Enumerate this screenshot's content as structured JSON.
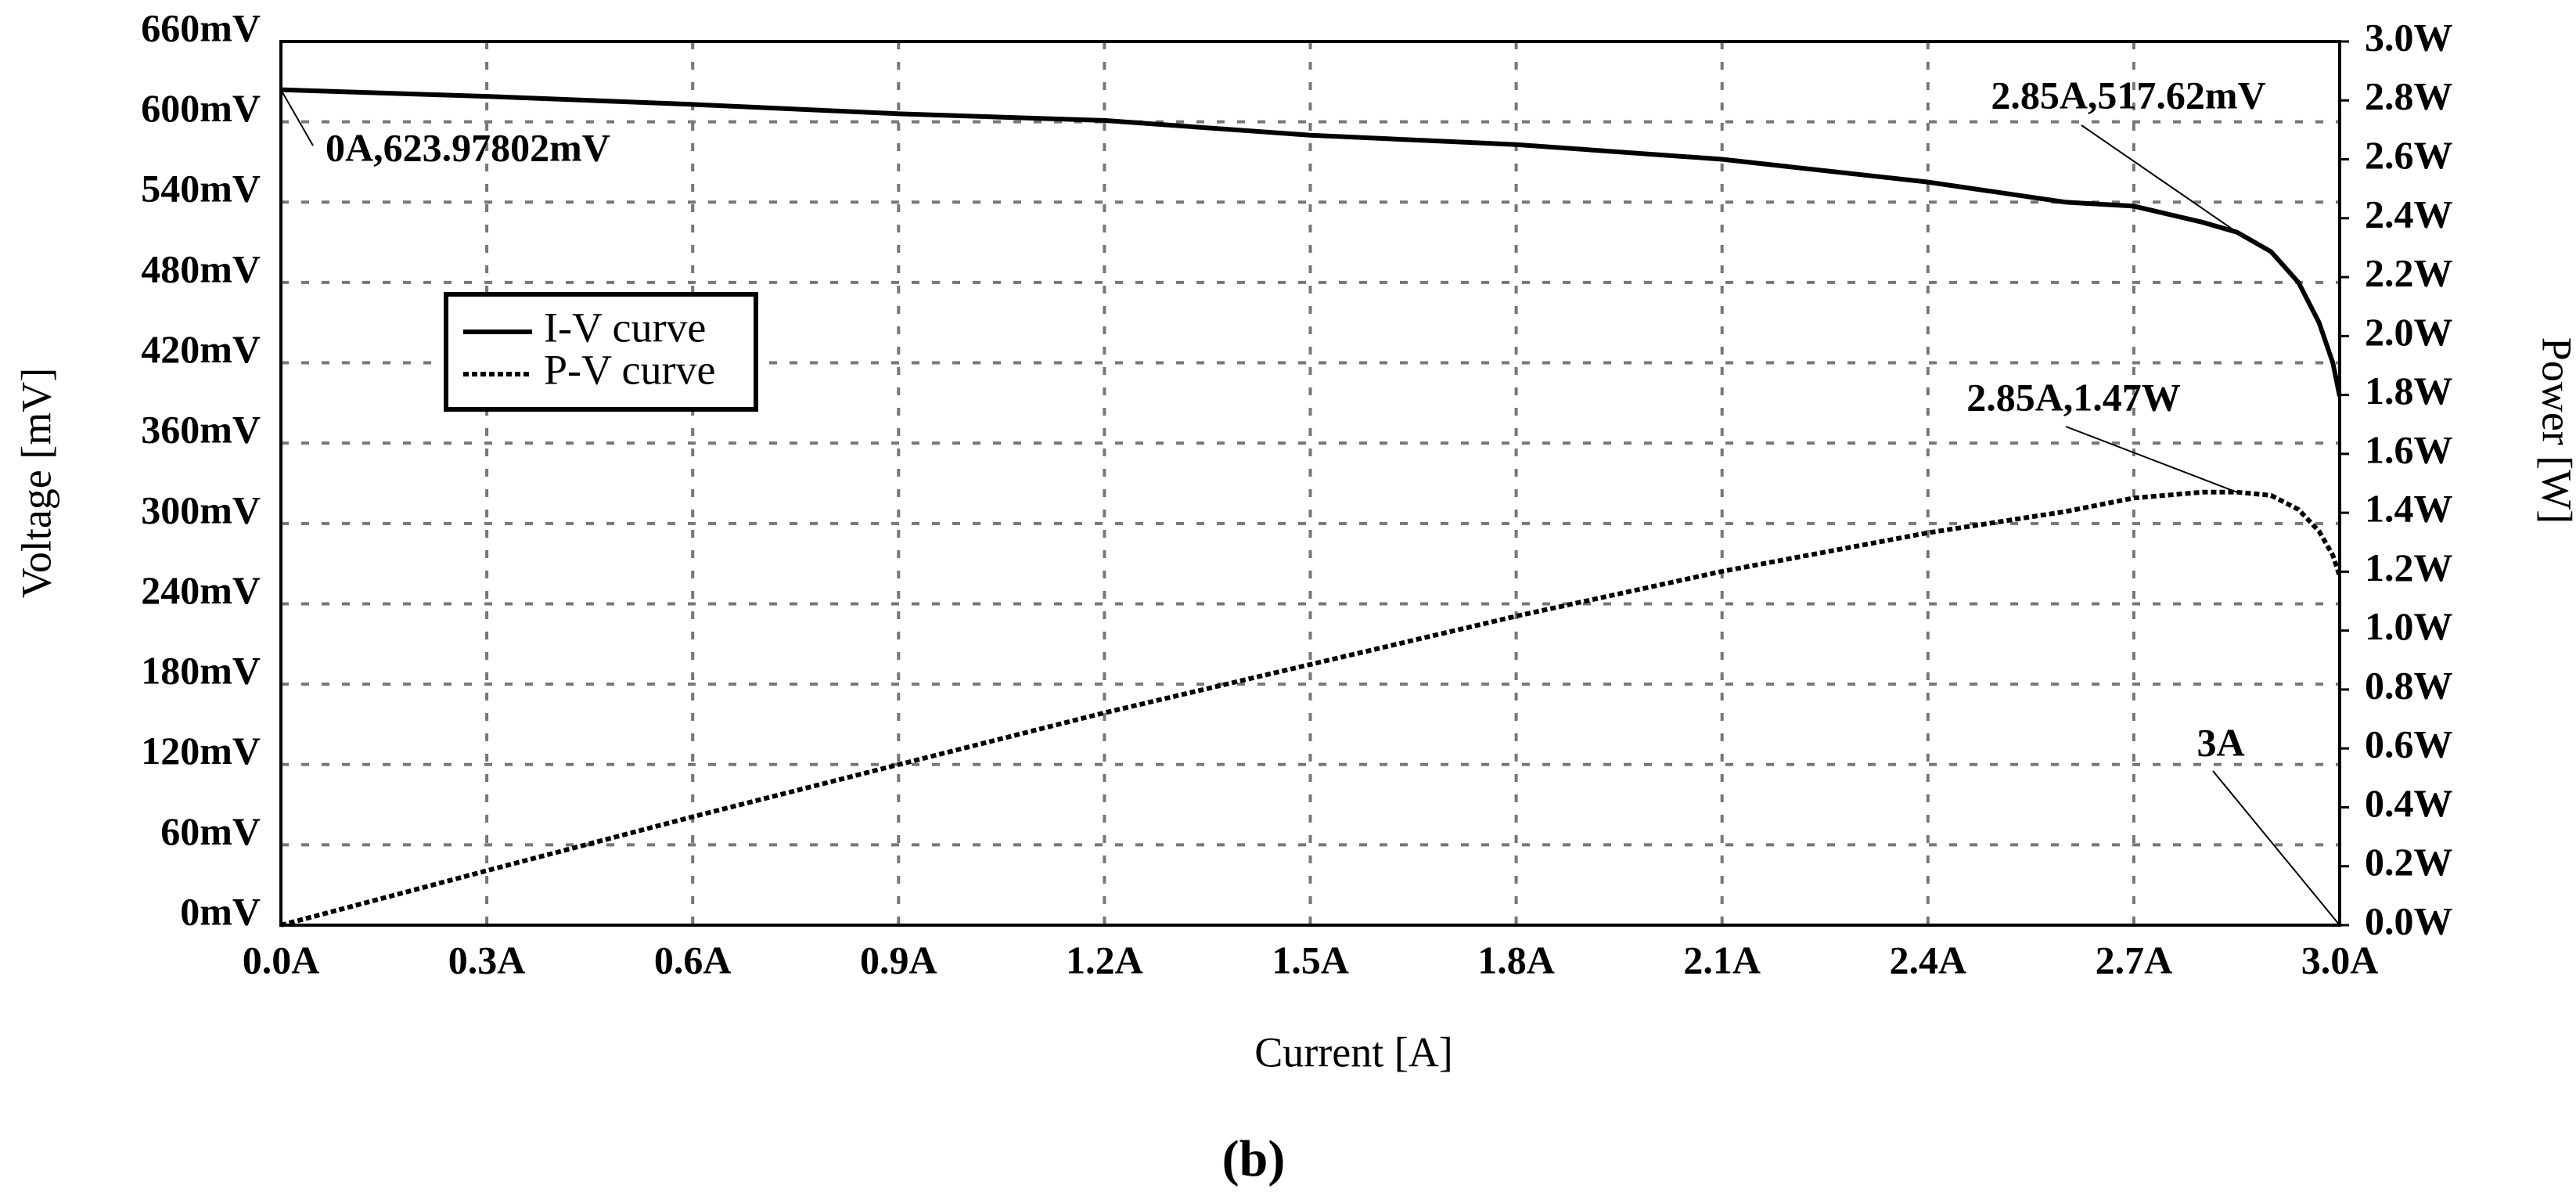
{
  "chart_data": {
    "type": "line",
    "caption": "(b)",
    "xlabel": "Current [A]",
    "ylabel": "Voltage [mV]",
    "y2label": "Power [W]",
    "x": [
      0,
      0.3,
      0.6,
      0.9,
      1.2,
      1.5,
      1.8,
      2.1,
      2.4,
      2.6,
      2.7,
      2.8,
      2.85,
      2.9,
      2.94,
      2.97,
      2.99,
      3.0
    ],
    "series": [
      {
        "name": "I-V curve",
        "color": "#000000",
        "style": "solid",
        "axis": "y",
        "values": [
          623.97802,
          619,
          613,
          606,
          601,
          590,
          583,
          572,
          555,
          540,
          537,
          525,
          517.62,
          503,
          480,
          450,
          420,
          395
        ]
      },
      {
        "name": "P-V curve",
        "color": "#000000",
        "style": "dotted",
        "axis": "y2",
        "values": [
          0,
          0.185,
          0.368,
          0.545,
          0.721,
          0.885,
          1.049,
          1.201,
          1.332,
          1.404,
          1.45,
          1.47,
          1.47,
          1.459,
          1.411,
          1.337,
          1.256,
          1.185
        ]
      }
    ],
    "annotations": [
      "0A,623.97802mV",
      "2.85A,517.62mV",
      "2.85A,1.47W",
      "3A"
    ],
    "xlim": [
      0,
      3.0
    ],
    "xticks": [
      {
        "value": 0,
        "label": "0.0A"
      },
      {
        "value": 0.3,
        "label": "0.3A"
      },
      {
        "value": 0.6,
        "label": "0.6A"
      },
      {
        "value": 0.9,
        "label": "0.9A"
      },
      {
        "value": 1.2,
        "label": "1.2A"
      },
      {
        "value": 1.5,
        "label": "1.5A"
      },
      {
        "value": 1.8,
        "label": "1.8A"
      },
      {
        "value": 2.1,
        "label": "2.1A"
      },
      {
        "value": 2.4,
        "label": "2.4A"
      },
      {
        "value": 2.7,
        "label": "2.7A"
      },
      {
        "value": 3.0,
        "label": "3.0A"
      }
    ],
    "ylim": [
      0,
      660
    ],
    "yticks": [
      {
        "value": 0,
        "label": "0mV"
      },
      {
        "value": 60,
        "label": "60mV"
      },
      {
        "value": 120,
        "label": "120mV"
      },
      {
        "value": 180,
        "label": "180mV"
      },
      {
        "value": 240,
        "label": "240mV"
      },
      {
        "value": 300,
        "label": "300mV"
      },
      {
        "value": 360,
        "label": "360mV"
      },
      {
        "value": 420,
        "label": "420mV"
      },
      {
        "value": 480,
        "label": "480mV"
      },
      {
        "value": 540,
        "label": "540mV"
      },
      {
        "value": 600,
        "label": "600mV"
      },
      {
        "value": 660,
        "label": "660mV"
      }
    ],
    "y2lim": [
      0,
      3.0
    ],
    "y2ticks": [
      {
        "value": 0,
        "label": "0.0W"
      },
      {
        "value": 0.2,
        "label": "0.2W"
      },
      {
        "value": 0.4,
        "label": "0.4W"
      },
      {
        "value": 0.6,
        "label": "0.6W"
      },
      {
        "value": 0.8,
        "label": "0.8W"
      },
      {
        "value": 1.0,
        "label": "1.0W"
      },
      {
        "value": 1.2,
        "label": "1.2W"
      },
      {
        "value": 1.4,
        "label": "1.4W"
      },
      {
        "value": 1.6,
        "label": "1.6W"
      },
      {
        "value": 1.8,
        "label": "1.8W"
      },
      {
        "value": 2.0,
        "label": "2.0W"
      },
      {
        "value": 2.2,
        "label": "2.2W"
      },
      {
        "value": 2.4,
        "label": "2.4W"
      },
      {
        "value": 2.6,
        "label": "2.6W"
      },
      {
        "value": 2.8,
        "label": "2.8W"
      },
      {
        "value": 3.0,
        "label": "3.0W"
      }
    ],
    "grid": true,
    "legend": "upper left"
  }
}
